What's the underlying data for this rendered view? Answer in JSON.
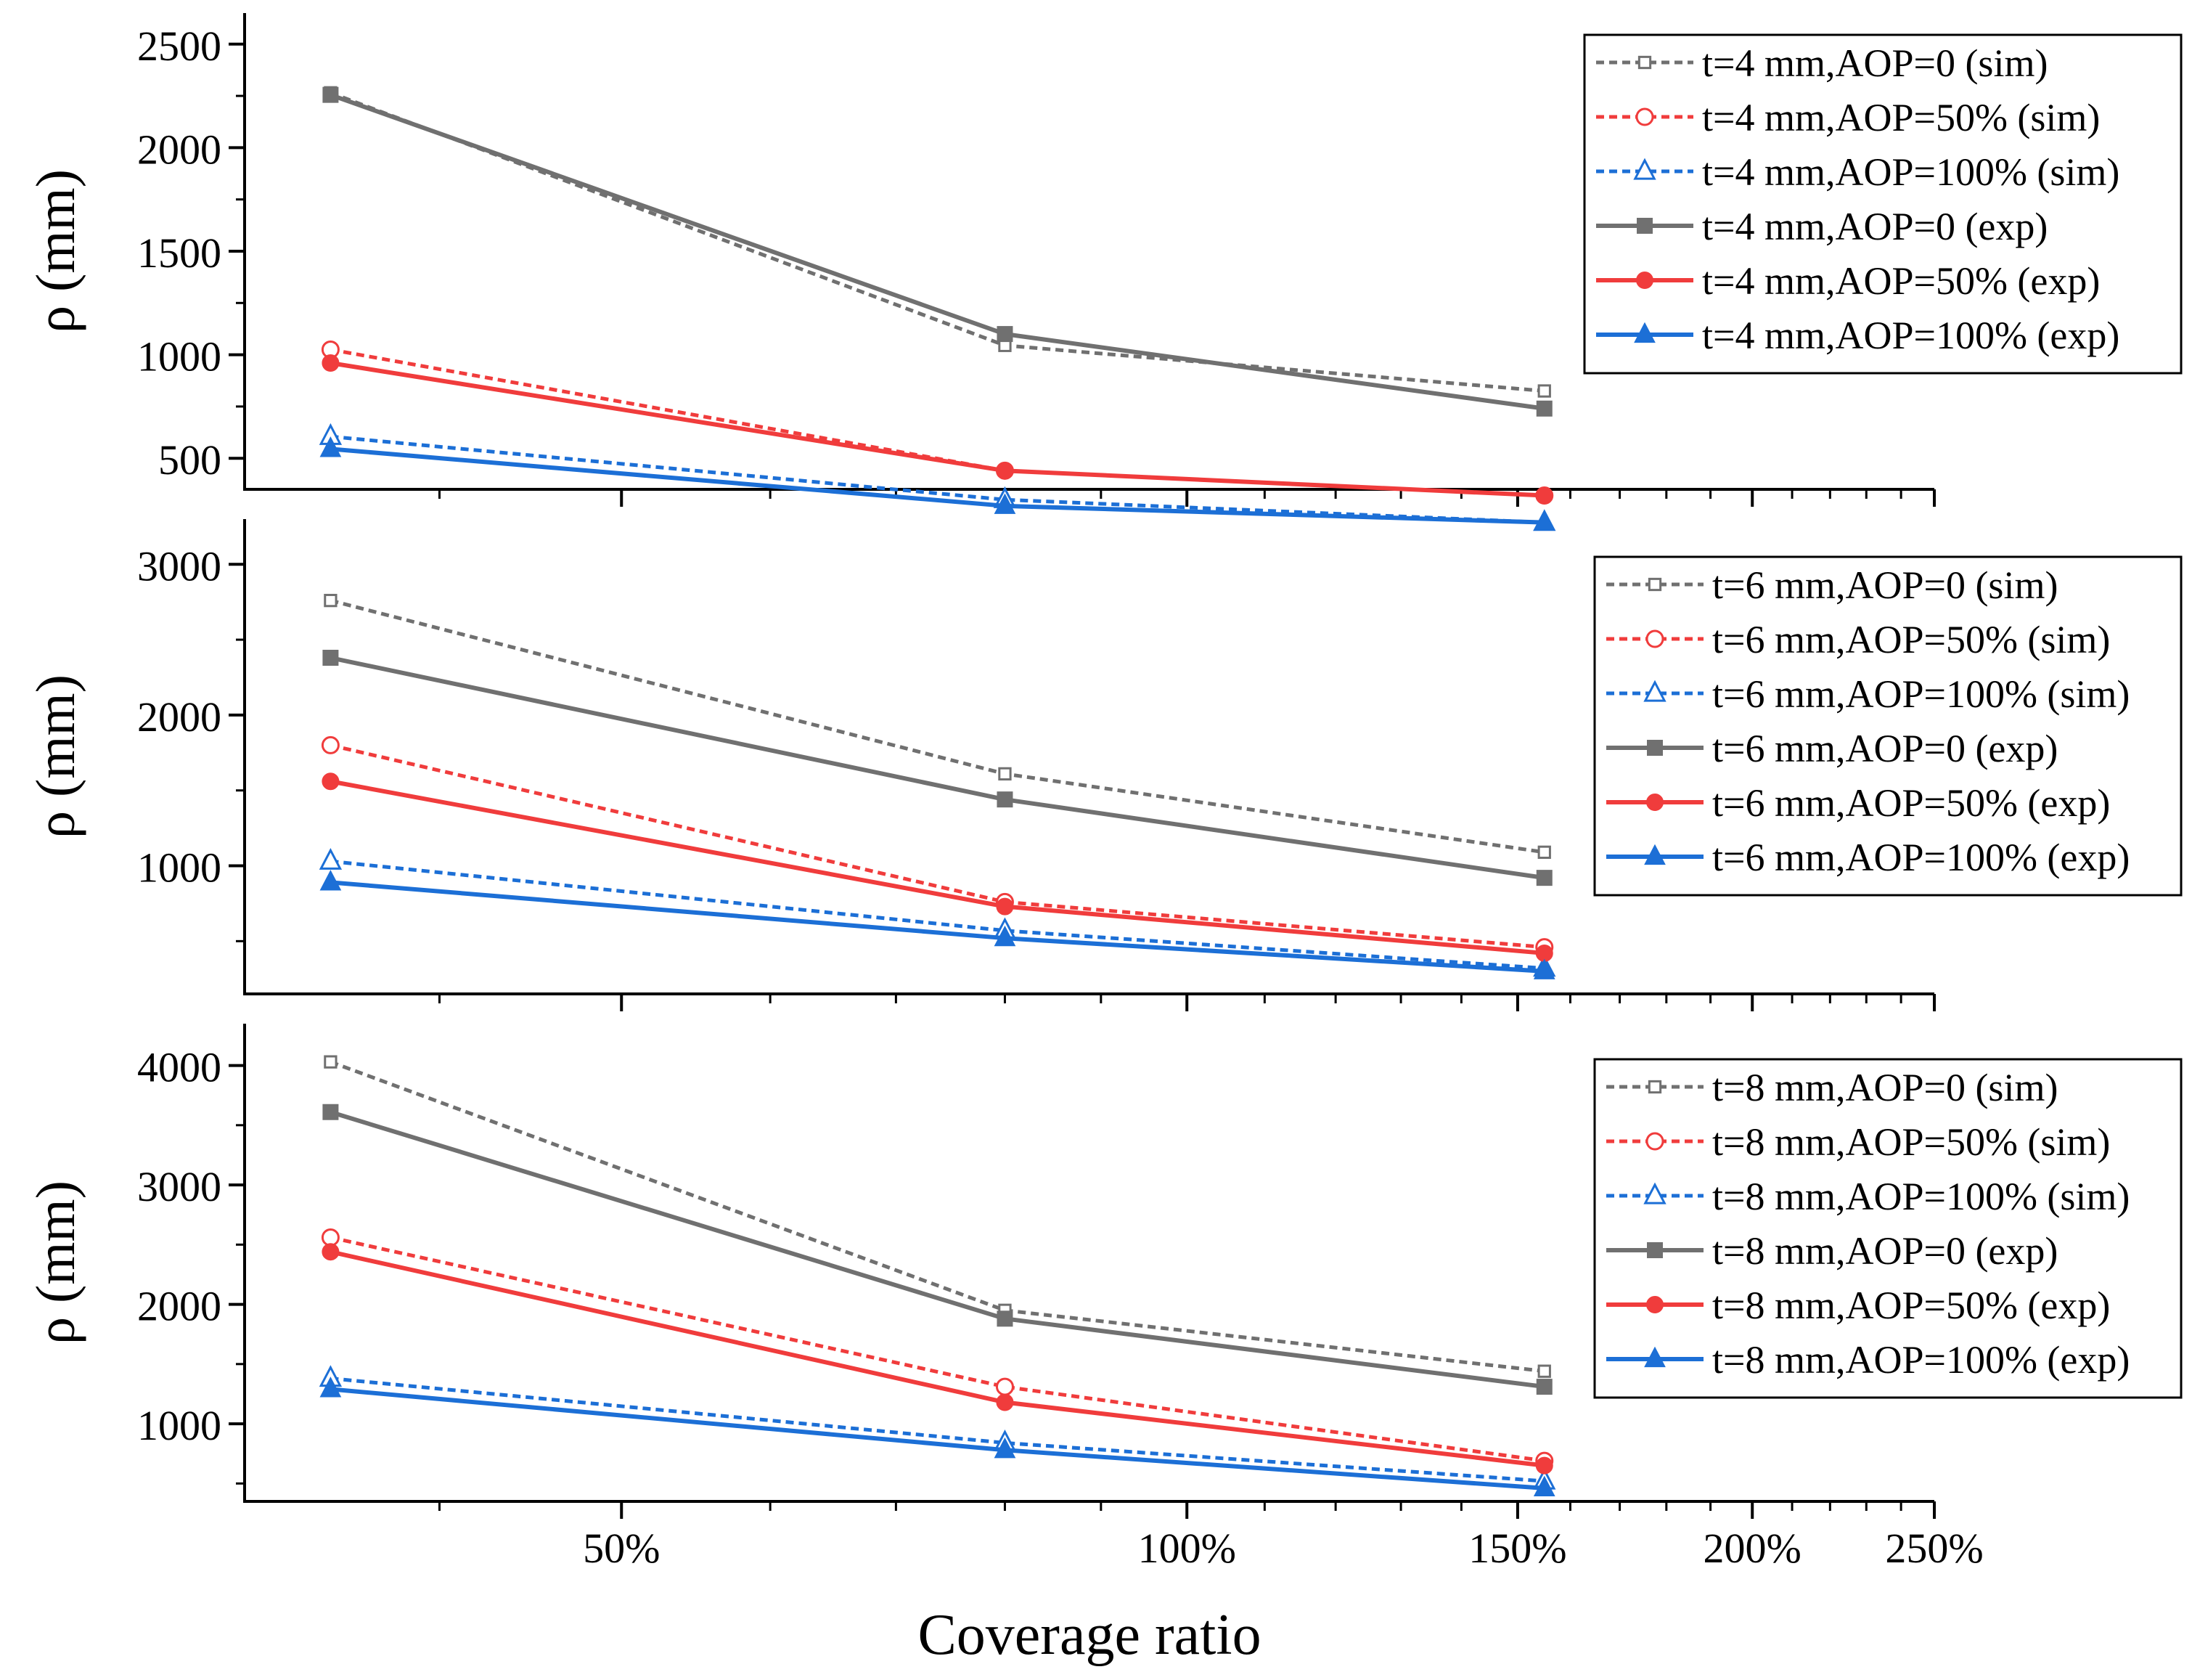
{
  "chart_data": [
    {
      "type": "line",
      "ylabel": "ρ (mm)",
      "x": [
        "35%",
        "80%",
        "155%"
      ],
      "x_values": [
        35,
        80,
        155
      ],
      "ylim": [
        350,
        2650
      ],
      "yticks": [
        500,
        1000,
        1500,
        2000,
        2500
      ],
      "ytick_labels": [
        "500",
        "1000",
        "1500",
        "2000",
        "2500"
      ],
      "legend_position": "top-right",
      "series": [
        {
          "name": "t=4 mm,AOP=0 (sim)",
          "color": "#707070",
          "dash": "dashed",
          "marker": "square-open",
          "values": [
            2265,
            1045,
            825
          ]
        },
        {
          "name": "t=4 mm,AOP=50% (sim)",
          "color": "#f03c3c",
          "dash": "dashed",
          "marker": "circle-open",
          "values": [
            1025,
            440,
            320
          ]
        },
        {
          "name": "t=4 mm,AOP=100% (sim)",
          "color": "#1c6fd6",
          "dash": "dashed",
          "marker": "triangle-open",
          "values": [
            605,
            300,
            190
          ]
        },
        {
          "name": "t=4 mm,AOP=0 (exp)",
          "color": "#707070",
          "dash": "solid",
          "marker": "square",
          "values": [
            2255,
            1100,
            740
          ]
        },
        {
          "name": "t=4 mm,AOP=50% (exp)",
          "color": "#f03c3c",
          "dash": "solid",
          "marker": "circle",
          "values": [
            960,
            440,
            320
          ]
        },
        {
          "name": "t=4 mm,AOP=100% (exp)",
          "color": "#1c6fd6",
          "dash": "solid",
          "marker": "triangle",
          "values": [
            545,
            270,
            190
          ]
        }
      ]
    },
    {
      "type": "line",
      "ylabel": "ρ (mm)",
      "x": [
        "35%",
        "80%",
        "155%"
      ],
      "x_values": [
        35,
        80,
        155
      ],
      "ylim": [
        150,
        3300
      ],
      "yticks": [
        1000,
        2000,
        3000
      ],
      "ytick_labels": [
        "1000",
        "2000",
        "3000"
      ],
      "legend_position": "top-right",
      "series": [
        {
          "name": "t=6 mm,AOP=0 (sim)",
          "color": "#707070",
          "dash": "dashed",
          "marker": "square-open",
          "values": [
            2760,
            1610,
            1090
          ]
        },
        {
          "name": "t=6 mm,AOP=50% (sim)",
          "color": "#f03c3c",
          "dash": "dashed",
          "marker": "circle-open",
          "values": [
            1800,
            760,
            460
          ]
        },
        {
          "name": "t=6 mm,AOP=100% (sim)",
          "color": "#1c6fd6",
          "dash": "dashed",
          "marker": "triangle-open",
          "values": [
            1030,
            570,
            320
          ]
        },
        {
          "name": "t=6 mm,AOP=0 (exp)",
          "color": "#707070",
          "dash": "solid",
          "marker": "square",
          "values": [
            2380,
            1440,
            920
          ]
        },
        {
          "name": "t=6 mm,AOP=50% (exp)",
          "color": "#f03c3c",
          "dash": "solid",
          "marker": "circle",
          "values": [
            1560,
            730,
            420
          ]
        },
        {
          "name": "t=6 mm,AOP=100% (exp)",
          "color": "#1c6fd6",
          "dash": "solid",
          "marker": "triangle",
          "values": [
            890,
            520,
            300
          ]
        }
      ]
    },
    {
      "type": "line",
      "ylabel": "ρ (mm)",
      "x": [
        "35%",
        "80%",
        "155%"
      ],
      "x_values": [
        35,
        80,
        155
      ],
      "ylim": [
        350,
        4350
      ],
      "yticks": [
        1000,
        2000,
        3000,
        4000
      ],
      "ytick_labels": [
        "1000",
        "2000",
        "3000",
        "4000"
      ],
      "xlabel": "Coverage ratio",
      "xticks": [
        50,
        100,
        150,
        200,
        250
      ],
      "xtick_labels": [
        "50%",
        "100%",
        "150%",
        "200%",
        "250%"
      ],
      "legend_position": "top-right",
      "series": [
        {
          "name": "t=8 mm,AOP=0 (sim)",
          "color": "#707070",
          "dash": "dashed",
          "marker": "square-open",
          "values": [
            4030,
            1950,
            1440
          ]
        },
        {
          "name": "t=8 mm,AOP=50% (sim)",
          "color": "#f03c3c",
          "dash": "dashed",
          "marker": "circle-open",
          "values": [
            2560,
            1310,
            690
          ]
        },
        {
          "name": "t=8 mm,AOP=100% (sim)",
          "color": "#1c6fd6",
          "dash": "dashed",
          "marker": "triangle-open",
          "values": [
            1380,
            840,
            520
          ]
        },
        {
          "name": "t=8 mm,AOP=0 (exp)",
          "color": "#707070",
          "dash": "solid",
          "marker": "square",
          "values": [
            3610,
            1880,
            1310
          ]
        },
        {
          "name": "t=8 mm,AOP=50% (exp)",
          "color": "#f03c3c",
          "dash": "solid",
          "marker": "circle",
          "values": [
            2440,
            1180,
            650
          ]
        },
        {
          "name": "t=8 mm,AOP=100% (exp)",
          "color": "#1c6fd6",
          "dash": "solid",
          "marker": "triangle",
          "values": [
            1290,
            780,
            460
          ]
        }
      ]
    }
  ]
}
